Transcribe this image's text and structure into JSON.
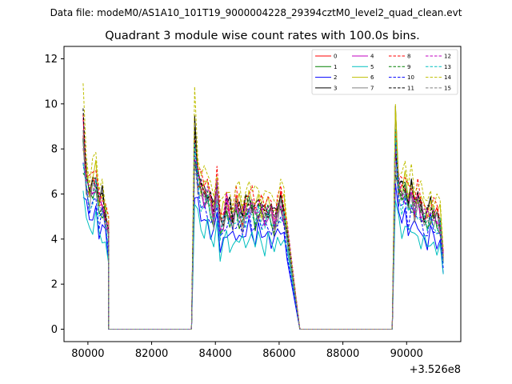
{
  "chart_data": {
    "type": "line",
    "suptitle": "Data file: modeM0/AS1A10_101T19_9000004228_29394cztM0_level2_quad_clean.evt",
    "title": "Quadrant 3 module wise count rates with 100.0s bins.",
    "xlabel": "",
    "ylabel": "",
    "offset_label": "+3.526e8",
    "x_ticks": [
      80000,
      82000,
      84000,
      86000,
      88000,
      90000
    ],
    "y_ticks": [
      0,
      2,
      4,
      6,
      8,
      10,
      12
    ],
    "xlim": [
      79250,
      91700
    ],
    "ylim": [
      -0.55,
      12.55
    ],
    "legend_location": "upper right",
    "legend_columns": 4,
    "segments": [
      {
        "start": 79850,
        "step": 100,
        "lo": 0.93,
        "pattern": [
          1.0,
          0.95,
          0.85,
          0.9,
          0.95,
          0.78,
          0.8,
          0.72,
          0.6
        ]
      },
      {
        "start": 83350,
        "step": 100,
        "lo": 0.9,
        "pattern": [
          1.0,
          0.97,
          0.88,
          0.85,
          0.86,
          0.79,
          0.72,
          0.9,
          0.66,
          0.7,
          0.78,
          0.73,
          0.7,
          0.78,
          0.75,
          0.71,
          0.76,
          0.8,
          0.78,
          0.73,
          0.78,
          0.74,
          0.72,
          0.76,
          0.73,
          0.68,
          0.75,
          0.8,
          0.74,
          0.6
        ]
      },
      {
        "start": 89650,
        "step": 100,
        "lo": 0.88,
        "pattern": [
          1.0,
          0.9,
          0.86,
          0.9,
          0.8,
          0.86,
          0.78,
          0.82,
          0.76,
          0.72,
          0.7,
          0.75,
          0.72,
          0.7,
          0.68,
          0.45
        ]
      }
    ],
    "gaps": [
      [
        80650,
        83250
      ],
      [
        86650,
        89550
      ]
    ],
    "series": [
      {
        "name": "0",
        "color": "#ff0000",
        "dash": "solid",
        "level": 7.0
      },
      {
        "name": "1",
        "color": "#008000",
        "dash": "solid",
        "level": 6.6
      },
      {
        "name": "2",
        "color": "#0000ff",
        "dash": "solid",
        "level": 5.6
      },
      {
        "name": "3",
        "color": "#000000",
        "dash": "solid",
        "level": 7.3
      },
      {
        "name": "4",
        "color": "#c000c0",
        "dash": "solid",
        "level": 6.8
      },
      {
        "name": "5",
        "color": "#00bfbf",
        "dash": "solid",
        "level": 5.2
      },
      {
        "name": "6",
        "color": "#bfbf00",
        "dash": "solid",
        "level": 7.4
      },
      {
        "name": "7",
        "color": "#808080",
        "dash": "solid",
        "level": 6.7
      },
      {
        "name": "8",
        "color": "#ff0000",
        "dash": "dashed",
        "level": 7.6
      },
      {
        "name": "9",
        "color": "#008000",
        "dash": "dashed",
        "level": 6.9
      },
      {
        "name": "10",
        "color": "#0000ff",
        "dash": "dashed",
        "level": 6.2
      },
      {
        "name": "11",
        "color": "#000000",
        "dash": "dashed",
        "level": 7.2
      },
      {
        "name": "12",
        "color": "#c000c0",
        "dash": "dashed",
        "level": 7.1
      },
      {
        "name": "13",
        "color": "#00bfbf",
        "dash": "dashed",
        "level": 6.5
      },
      {
        "name": "14",
        "color": "#bfbf00",
        "dash": "dashed",
        "level": 8.1
      },
      {
        "name": "15",
        "color": "#808080",
        "dash": "dashed",
        "level": 6.8
      }
    ]
  }
}
